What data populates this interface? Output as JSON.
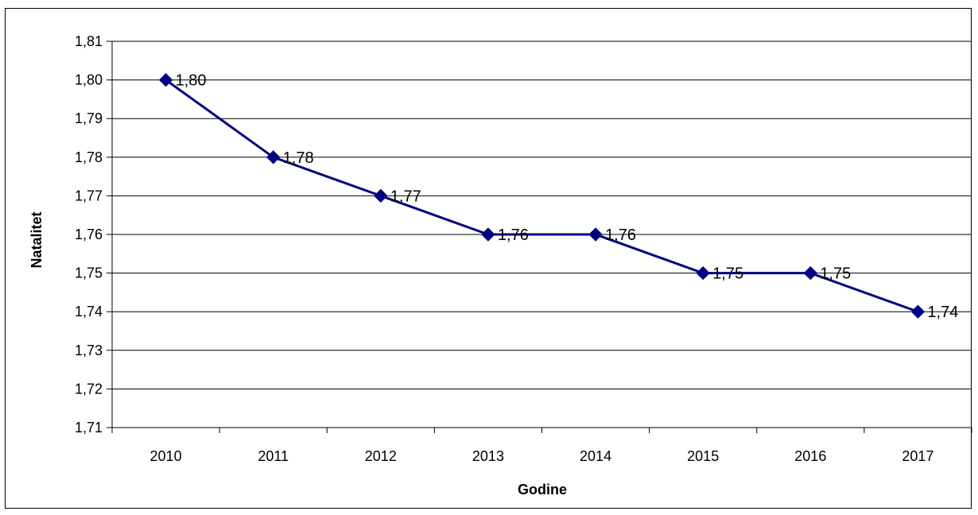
{
  "chart_data": {
    "type": "line",
    "x": [
      "2010",
      "2011",
      "2012",
      "2013",
      "2014",
      "2015",
      "2016",
      "2017"
    ],
    "values": [
      1.8,
      1.78,
      1.77,
      1.76,
      1.76,
      1.75,
      1.75,
      1.74
    ],
    "data_labels": [
      "1,80",
      "1,78",
      "1,77",
      "1,76",
      "1,76",
      "1,75",
      "1,75",
      "1,74"
    ],
    "y_ticks": [
      "1,71",
      "1,72",
      "1,73",
      "1,74",
      "1,75",
      "1,76",
      "1,77",
      "1,78",
      "1,79",
      "1,80",
      "1,81"
    ],
    "xlabel": "Godine",
    "ylabel": "Natalitet",
    "ylim": [
      1.71,
      1.81
    ],
    "grid": true,
    "series_color": "#000080",
    "marker": "diamond"
  }
}
